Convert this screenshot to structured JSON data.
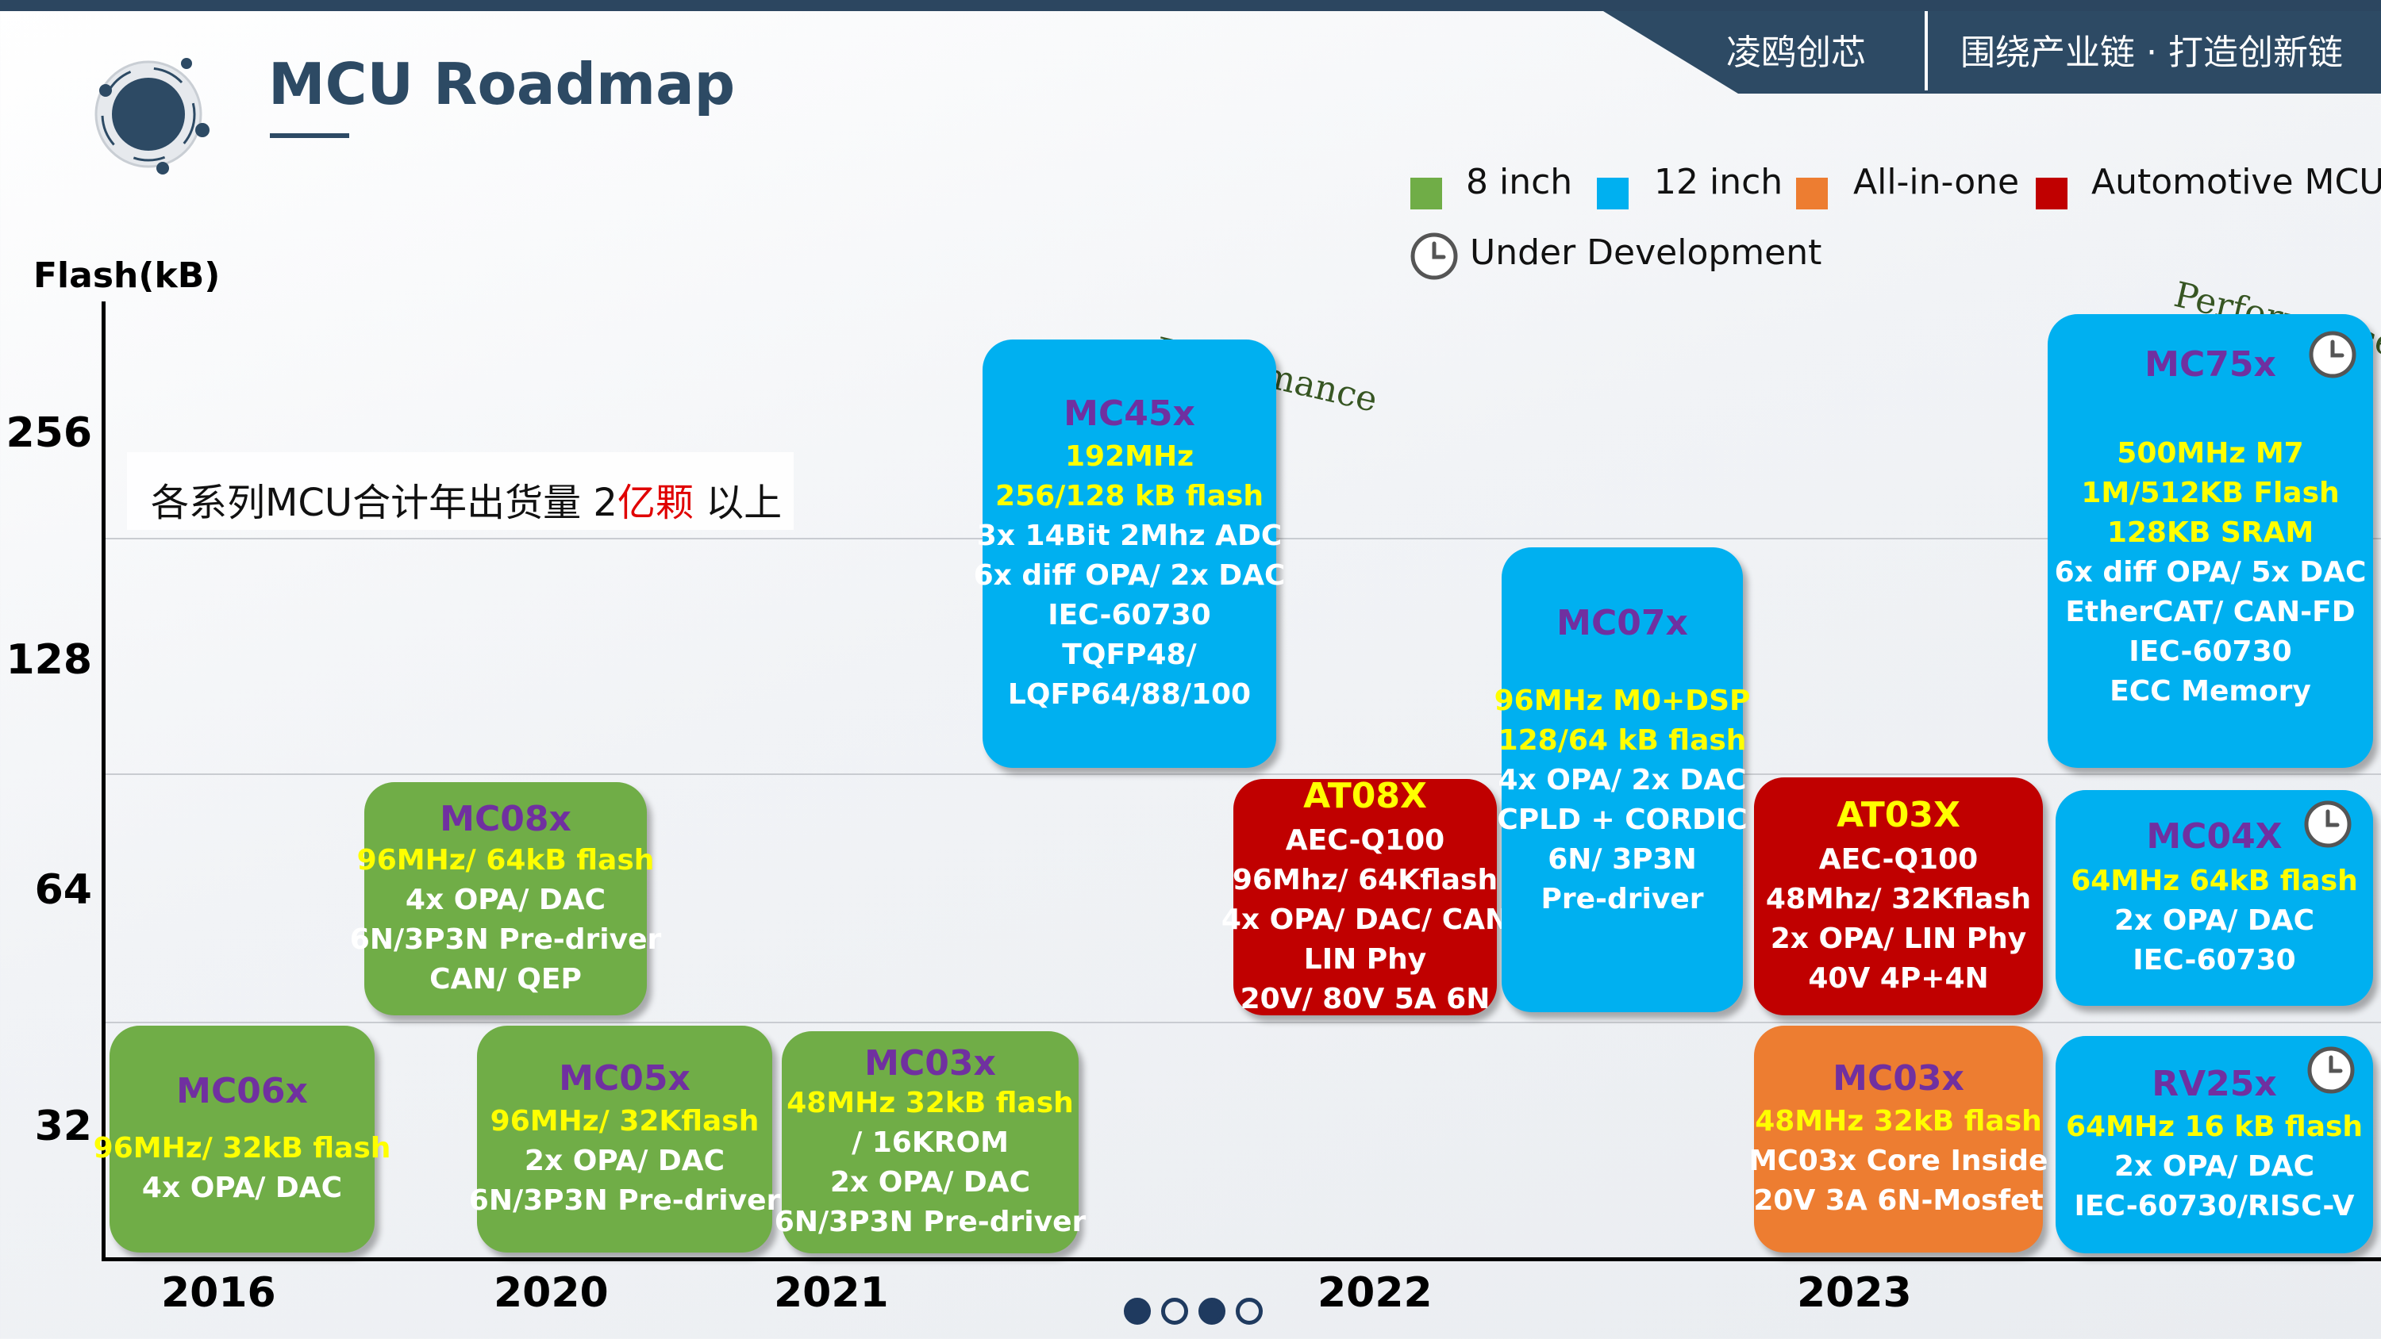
{
  "header": {
    "company": "凌鸥创芯",
    "slogan": "围绕产业链 · 打造创新链",
    "title": "MCU Roadmap"
  },
  "legend": [
    {
      "label": "8 inch",
      "color": "#70ad47"
    },
    {
      "label": "12 inch",
      "color": "#00b0f0"
    },
    {
      "label": "All-in-one",
      "color": "#ed7d31"
    },
    {
      "label": "Automotive MCU",
      "color": "#c00000"
    }
  ],
  "legend_dev": {
    "label": "Under Development",
    "icon": "clock-icon"
  },
  "axis": {
    "y_title": "Flash(kB)",
    "y_ticks": [
      "256",
      "128",
      "64",
      "32"
    ],
    "x_ticks": [
      "2016",
      "2020",
      "2021",
      "2022",
      "2023"
    ]
  },
  "shipment": {
    "prefix": "各系列MCU合计年出货量 2",
    "highlight": "亿颗",
    "suffix": " 以上"
  },
  "performance_label": "Performance",
  "products": [
    {
      "name": "MC06x",
      "type": "8 inch",
      "year": "2016",
      "flash_tier": "32",
      "lines": [
        "96MHz/ 32kB flash",
        "4x OPA/ DAC"
      ]
    },
    {
      "name": "MC08x",
      "type": "8 inch",
      "year": "2016-2020",
      "flash_tier": "64",
      "lines": [
        "96MHz/ 64kB flash",
        "4x OPA/ DAC",
        "6N/3P3N Pre-driver",
        "CAN/ QEP"
      ]
    },
    {
      "name": "MC05x",
      "type": "8 inch",
      "year": "2020",
      "flash_tier": "32",
      "lines": [
        "96MHz/ 32Kflash",
        "2x OPA/ DAC",
        "6N/3P3N Pre-driver"
      ]
    },
    {
      "name": "MC03x",
      "type": "8 inch",
      "year": "2021",
      "flash_tier": "32",
      "lines": [
        "48MHz 32kB flash",
        "/ 16KROM",
        "2x OPA/ DAC",
        "6N/3P3N Pre-driver"
      ]
    },
    {
      "name": "MC45x",
      "type": "12 inch",
      "year": "2021",
      "flash_tier": "256/128",
      "lines": [
        "192MHz",
        "256/128 kB flash",
        "3x 14Bit 2Mhz ADC",
        "6x diff OPA/ 2x DAC",
        "IEC-60730",
        "TQFP48/",
        "LQFP64/88/100"
      ]
    },
    {
      "name": "AT08X",
      "type": "Automotive MCU",
      "year": "2022",
      "flash_tier": "64",
      "lines": [
        "AEC-Q100",
        "96Mhz/ 64Kflash",
        "4x OPA/ DAC/ CAN",
        "LIN Phy",
        "20V/ 80V 5A 6N"
      ]
    },
    {
      "name": "MC07x",
      "type": "12 inch",
      "year": "2022",
      "flash_tier": "128/64",
      "lines": [
        "96MHz M0+DSP",
        "128/64 kB flash",
        "4x OPA/ 2x DAC",
        "CPLD + CORDIC",
        "6N/ 3P3N",
        "Pre-driver"
      ]
    },
    {
      "name": "AT03X",
      "type": "Automotive MCU",
      "year": "2023",
      "flash_tier": "64",
      "lines": [
        "AEC-Q100",
        "48Mhz/ 32Kflash",
        "2x OPA/ LIN Phy",
        "40V 4P+4N"
      ]
    },
    {
      "name": "MC03x",
      "type": "All-in-one",
      "year": "2023",
      "flash_tier": "32",
      "lines": [
        "48MHz 32kB flash",
        "MC03x Core Inside",
        "20V 3A 6N-Mosfet"
      ]
    },
    {
      "name": "MC75x",
      "type": "12 inch",
      "year": "2023",
      "flash_tier": ">256",
      "under_development": true,
      "lines": [
        "500MHz M7",
        "1M/512KB Flash",
        "128KB SRAM",
        "6x diff OPA/ 5x DAC",
        "EtherCAT/ CAN-FD",
        "IEC-60730",
        "ECC Memory"
      ]
    },
    {
      "name": "MC04X",
      "type": "12 inch",
      "year": "2023",
      "flash_tier": "64",
      "under_development": true,
      "lines": [
        "64MHz 64kB flash",
        "2x OPA/ DAC",
        "IEC-60730"
      ]
    },
    {
      "name": "RV25x",
      "type": "12 inch",
      "year": "2023",
      "flash_tier": "32",
      "under_development": true,
      "lines": [
        "64MHz 16 kB flash",
        "2x OPA/ DAC",
        "IEC-60730/RISC-V"
      ]
    }
  ],
  "pagination": {
    "total": 4,
    "filled": [
      1,
      3
    ]
  }
}
